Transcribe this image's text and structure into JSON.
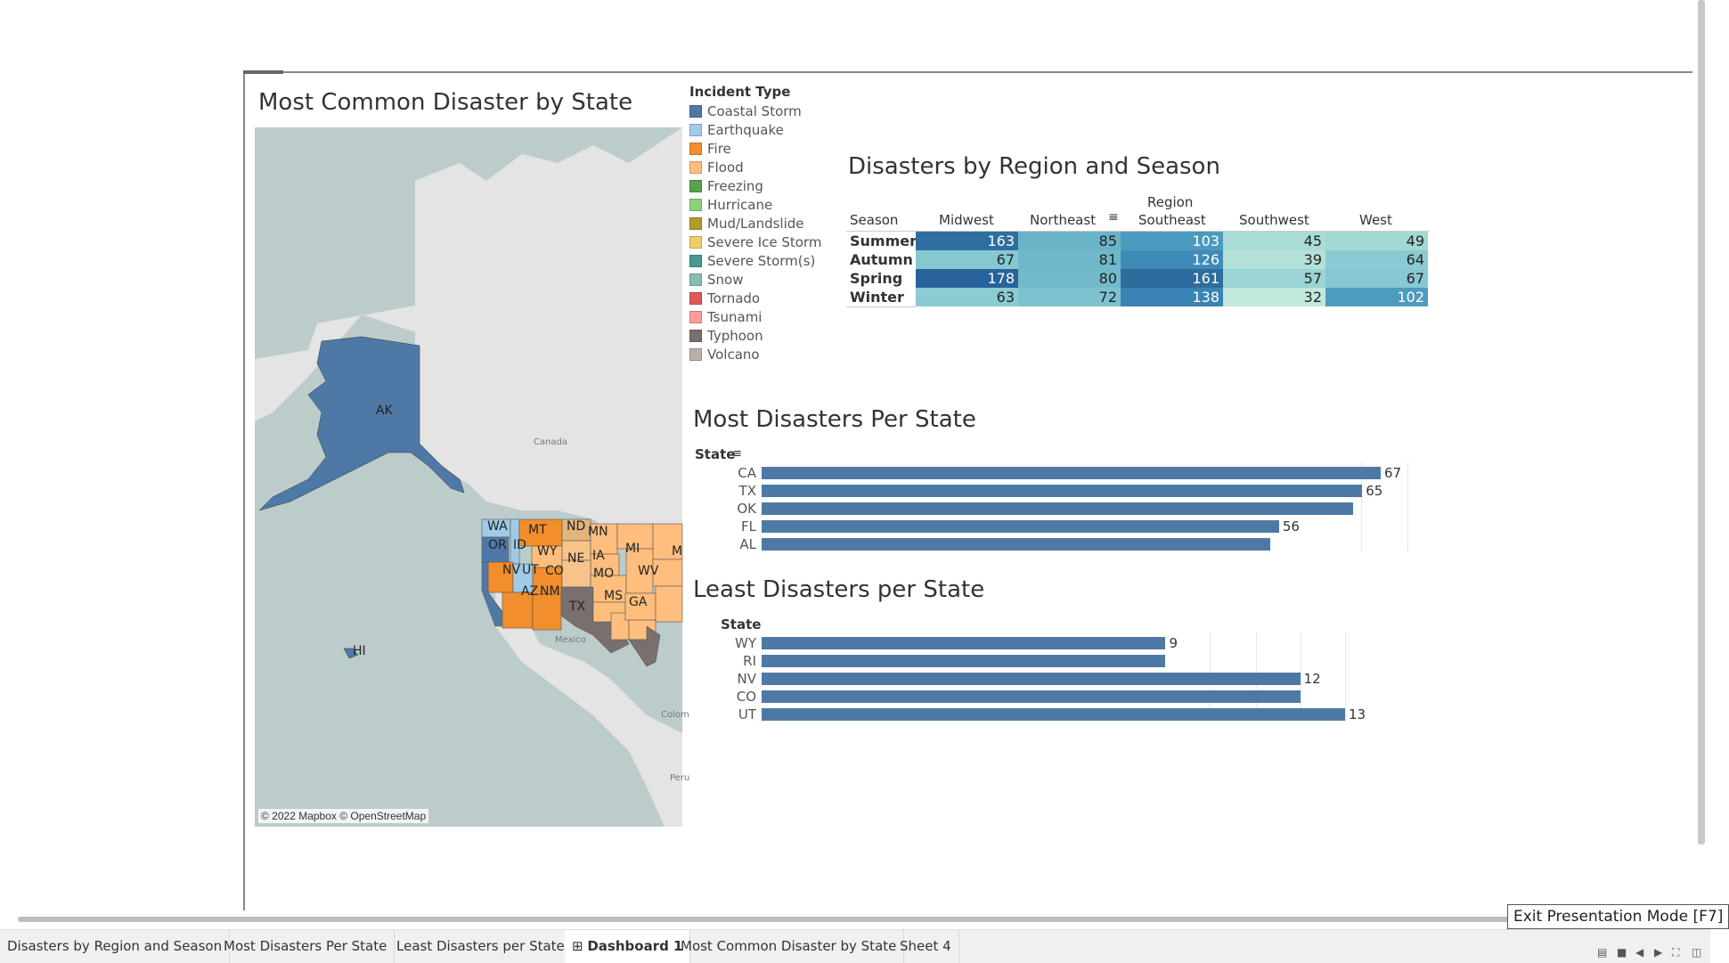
{
  "map_section": {
    "title": "Most Common Disaster by State",
    "attribution": "© 2022 Mapbox © OpenStreetMap",
    "canada_label": "Canada",
    "mexico_label": "Mexico",
    "colombia_label": "Colom",
    "peru_label": "Peru",
    "state_labels": [
      "AK",
      "HI",
      "WA",
      "OR",
      "ID",
      "MT",
      "WY",
      "ND",
      "MN",
      "NE",
      "IA",
      "NV",
      "UT",
      "CO",
      "AZ",
      "NM",
      "MO",
      "MI",
      "WV",
      "TX",
      "MS",
      "GA",
      "M"
    ]
  },
  "legend": {
    "title": "Incident Type",
    "items": [
      {
        "label": "Coastal Storm",
        "color": "#4e79a7"
      },
      {
        "label": "Earthquake",
        "color": "#a0cbe8"
      },
      {
        "label": "Fire",
        "color": "#f28e2b"
      },
      {
        "label": "Flood",
        "color": "#ffbe7d"
      },
      {
        "label": "Freezing",
        "color": "#59a14f"
      },
      {
        "label": "Hurricane",
        "color": "#8cd17d"
      },
      {
        "label": "Mud/Landslide",
        "color": "#b6992d"
      },
      {
        "label": "Severe Ice Storm",
        "color": "#f1ce63"
      },
      {
        "label": "Severe Storm(s)",
        "color": "#499894"
      },
      {
        "label": "Snow",
        "color": "#86bcb6"
      },
      {
        "label": "Tornado",
        "color": "#e15759"
      },
      {
        "label": "Tsunami",
        "color": "#ff9d9a"
      },
      {
        "label": "Typhoon",
        "color": "#79706e"
      },
      {
        "label": "Volcano",
        "color": "#bab0ac"
      }
    ]
  },
  "region_season": {
    "title": "Disasters by Region and Season",
    "region_header": "Region",
    "season_header": "Season",
    "sort_icon": "sort-icon",
    "columns": [
      "Midwest",
      "Northeast",
      "Southeast",
      "Southwest",
      "West"
    ],
    "rows": [
      {
        "season": "Summer",
        "values": [
          "163",
          "85",
          "103",
          "45",
          "49"
        ],
        "colors": [
          "#2f6e9e",
          "#6ab4c7",
          "#4c9abd",
          "#aadcd6",
          "#a3d8d3"
        ],
        "text_colors": [
          "#fff",
          "#222",
          "#fff",
          "#222",
          "#222"
        ]
      },
      {
        "season": "Autumn",
        "values": [
          "67",
          "81",
          "126",
          "39",
          "64"
        ],
        "colors": [
          "#86c8d2",
          "#6fb8c9",
          "#3f8bb8",
          "#b3e1d8",
          "#8acad3"
        ],
        "text_colors": [
          "#222",
          "#222",
          "#fff",
          "#222",
          "#222"
        ]
      },
      {
        "season": "Spring",
        "values": [
          "178",
          "80",
          "161",
          "57",
          "67"
        ],
        "colors": [
          "#27629a",
          "#72bacb",
          "#2e6c9e",
          "#9ad4d4",
          "#86c8d2"
        ],
        "text_colors": [
          "#fff",
          "#222",
          "#fff",
          "#222",
          "#222"
        ]
      },
      {
        "season": "Winter",
        "values": [
          "63",
          "72",
          "138",
          "32",
          "102"
        ],
        "colors": [
          "#8bcbd3",
          "#7ec2cf",
          "#3a83b5",
          "#c1e8da",
          "#4d9bbd"
        ],
        "text_colors": [
          "#222",
          "#222",
          "#fff",
          "#222",
          "#fff"
        ]
      }
    ]
  },
  "most_disasters": {
    "title": "Most Disasters Per State",
    "axis_label": "State",
    "sort_icon": "sort-icon"
  },
  "least_disasters": {
    "title": "Least Disasters per State",
    "axis_label": "State"
  },
  "chart_data": [
    {
      "type": "bar",
      "title": "Most Disasters Per State",
      "xlabel": "State",
      "categories": [
        "CA",
        "TX",
        "OK",
        "FL",
        "AL"
      ],
      "values": [
        67,
        65,
        64,
        56,
        55
      ],
      "labels": [
        "67",
        "65",
        "",
        "56",
        ""
      ]
    },
    {
      "type": "bar",
      "title": "Least Disasters per State",
      "xlabel": "State",
      "categories": [
        "WY",
        "RI",
        "NV",
        "CO",
        "UT"
      ],
      "values": [
        9,
        9,
        12,
        12,
        13
      ],
      "labels": [
        "9",
        "",
        "12",
        "",
        "13"
      ]
    }
  ],
  "tabs": [
    {
      "label": "Disasters by Region and Season",
      "active": false
    },
    {
      "label": "Most Disasters Per State",
      "active": false
    },
    {
      "label": "Least Disasters per State",
      "active": false
    },
    {
      "label": "Dashboard 1",
      "active": true,
      "icon": "dashboard-grid-icon"
    },
    {
      "label": "Most Common Disaster by State",
      "active": false
    },
    {
      "label": "Sheet 4",
      "active": false
    }
  ],
  "tooltip": "Exit Presentation Mode [F7]"
}
